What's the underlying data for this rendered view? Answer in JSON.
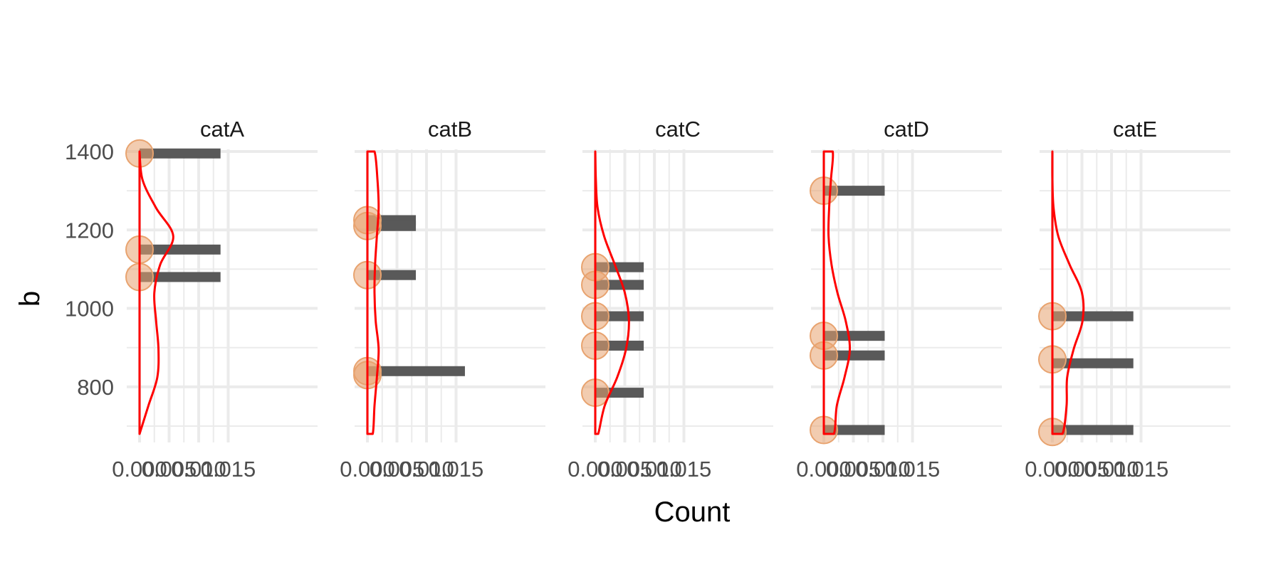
{
  "chart_data": {
    "type": "bar",
    "title": "",
    "xlabel": "Count",
    "ylabel": "b",
    "facets": [
      "catA",
      "catB",
      "catC",
      "catD",
      "catE"
    ],
    "xlim": [
      0,
      0.015
    ],
    "ylim": [
      680,
      1400
    ],
    "x_ticks": [
      0.0,
      0.005,
      0.01,
      0.015
    ],
    "x_tick_labels": [
      "0.000",
      "0.005",
      "0.010",
      "0.015"
    ],
    "y_ticks": [
      800,
      1000,
      1200,
      1400
    ],
    "y_tick_labels": [
      "800",
      "1000",
      "1200",
      "1400"
    ],
    "grid": true,
    "colors": {
      "bar": "#595959",
      "density": "#ff0000",
      "point": "#e8a36f",
      "grid": "#ebebeb"
    },
    "panels": [
      {
        "name": "catA",
        "bars": [
          {
            "y": 1395,
            "count": 0.0137
          },
          {
            "y": 1150,
            "count": 0.0137
          },
          {
            "y": 1080,
            "count": 0.0137
          }
        ],
        "points": [
          1395,
          1150,
          1080
        ],
        "density_width": [
          0,
          0.0015,
          0.003,
          0.0032,
          0.0028,
          0.0025,
          0.0035,
          0.0057,
          0.0028,
          0.0005,
          0
        ]
      },
      {
        "name": "catB",
        "bars": [
          {
            "y": 1225,
            "count": 0.0082
          },
          {
            "y": 1210,
            "count": 0.0082
          },
          {
            "y": 1085,
            "count": 0.0082
          },
          {
            "y": 840,
            "count": 0.0165
          }
        ],
        "points": [
          1225,
          1210,
          1085,
          840,
          830
        ],
        "density_width": [
          0.0009,
          0.0012,
          0.0016,
          0.0019,
          0.0014,
          0.0012,
          0.0013,
          0.0016,
          0.0019,
          0.0017,
          0.0012
        ]
      },
      {
        "name": "catC",
        "bars": [
          {
            "y": 1105,
            "count": 0.0082
          },
          {
            "y": 1060,
            "count": 0.0082
          },
          {
            "y": 980,
            "count": 0.0082
          },
          {
            "y": 905,
            "count": 0.0082
          },
          {
            "y": 785,
            "count": 0.0082
          }
        ],
        "points": [
          1105,
          1060,
          980,
          905,
          785
        ],
        "density_width": [
          0.0005,
          0.0016,
          0.0037,
          0.0052,
          0.0057,
          0.005,
          0.0033,
          0.0015,
          0.0004,
          0.0001,
          0
        ]
      },
      {
        "name": "catD",
        "bars": [
          {
            "y": 1300,
            "count": 0.0103
          },
          {
            "y": 930,
            "count": 0.0103
          },
          {
            "y": 880,
            "count": 0.0103
          },
          {
            "y": 690,
            "count": 0.0103
          }
        ],
        "points": [
          1300,
          930,
          880,
          690
        ],
        "density_width": [
          0.0017,
          0.0022,
          0.0035,
          0.0044,
          0.0037,
          0.0023,
          0.0013,
          0.0008,
          0.0009,
          0.0012,
          0.0015
        ]
      },
      {
        "name": "catE",
        "bars": [
          {
            "y": 980,
            "count": 0.0137
          },
          {
            "y": 860,
            "count": 0.0137
          },
          {
            "y": 690,
            "count": 0.0137
          }
        ],
        "points": [
          980,
          870,
          685
        ],
        "density_width": [
          0.0017,
          0.0024,
          0.0025,
          0.0036,
          0.0051,
          0.005,
          0.0029,
          0.001,
          0.0002,
          0,
          0
        ]
      }
    ]
  }
}
